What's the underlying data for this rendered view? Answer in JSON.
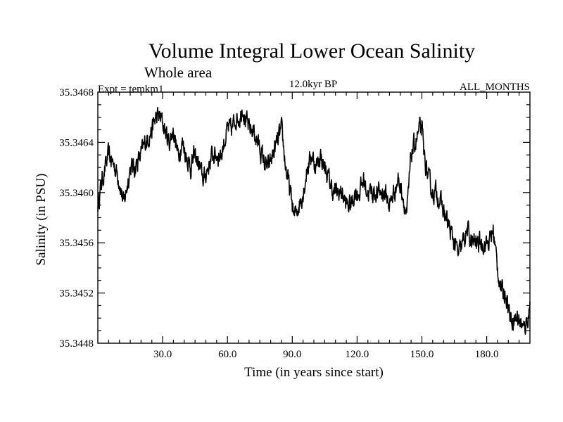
{
  "chart_data": {
    "type": "line",
    "title": "Volume Integral Lower Ocean Salinity",
    "subtitle": "Whole area",
    "experiment_label": "Expt = temkm1",
    "period_label": "12.0kyr BP",
    "months_label": "ALL_MONTHS",
    "xlabel": "Time (in years since start)",
    "ylabel": "Salinity (in PSU)",
    "xlim": [
      0,
      200
    ],
    "ylim": [
      35.3448,
      35.3468
    ],
    "x_ticks": [
      30,
      60,
      90,
      120,
      150,
      180
    ],
    "x_tick_labels": [
      "30.0",
      "60.0",
      "90.0",
      "120.0",
      "150.0",
      "180.0"
    ],
    "y_ticks": [
      35.3448,
      35.3452,
      35.3456,
      35.346,
      35.3464,
      35.3468
    ],
    "y_tick_labels": [
      "35.3448",
      "35.3452",
      "35.3456",
      "35.3460",
      "35.3464",
      "35.3468"
    ],
    "noise_amplitude": 0.0001,
    "series": [
      {
        "name": "Salinity",
        "x": [
          0,
          2,
          5,
          8,
          10,
          12,
          13,
          15,
          17,
          20,
          22,
          25,
          27,
          29,
          31,
          33,
          35,
          37,
          39,
          41,
          43,
          45,
          47,
          49,
          51,
          53,
          55,
          57,
          60,
          62,
          64,
          66,
          67,
          68,
          70,
          72,
          74,
          76,
          78,
          79,
          81,
          83,
          85,
          87,
          89,
          90,
          91,
          93,
          95,
          97,
          99,
          101,
          103,
          105,
          107,
          109,
          111,
          113,
          115,
          117,
          119,
          121,
          123,
          125,
          127,
          129,
          131,
          133,
          135,
          137,
          139,
          141,
          143,
          145,
          147,
          149,
          150,
          151,
          153,
          155,
          157,
          159,
          161,
          163,
          165,
          167,
          169,
          171,
          173,
          175,
          177,
          179,
          181,
          183,
          185,
          187,
          189,
          191,
          193,
          195,
          197,
          199,
          200
        ],
        "y": [
          35.3459,
          35.3461,
          35.3463,
          35.3462,
          35.3461,
          35.3459,
          35.346,
          35.3462,
          35.3462,
          35.3463,
          35.3464,
          35.3465,
          35.3466,
          35.3466,
          35.3465,
          35.3464,
          35.3465,
          35.3463,
          35.3464,
          35.3463,
          35.3462,
          35.3463,
          35.3462,
          35.3461,
          35.3462,
          35.3463,
          35.3463,
          35.3463,
          35.3465,
          35.3465,
          35.3466,
          35.3466,
          35.3467,
          35.3466,
          35.3465,
          35.3465,
          35.3464,
          35.3463,
          35.3462,
          35.3462,
          35.3463,
          35.3464,
          35.3465,
          35.3462,
          35.346,
          35.3459,
          35.3458,
          35.3459,
          35.346,
          35.3462,
          35.3463,
          35.3462,
          35.3463,
          35.3462,
          35.3461,
          35.346,
          35.346,
          35.346,
          35.3459,
          35.3459,
          35.346,
          35.346,
          35.3461,
          35.346,
          35.346,
          35.346,
          35.346,
          35.346,
          35.3459,
          35.346,
          35.3461,
          35.346,
          35.3458,
          35.3463,
          35.3464,
          35.3465,
          35.3465,
          35.3463,
          35.3461,
          35.346,
          35.346,
          35.3459,
          35.3458,
          35.3457,
          35.3456,
          35.3455,
          35.3456,
          35.3457,
          35.3456,
          35.3456,
          35.3456,
          35.3456,
          35.3456,
          35.3457,
          35.3454,
          35.3452,
          35.3452,
          35.345,
          35.345,
          35.345,
          35.3449,
          35.345,
          35.3451
        ]
      }
    ]
  }
}
